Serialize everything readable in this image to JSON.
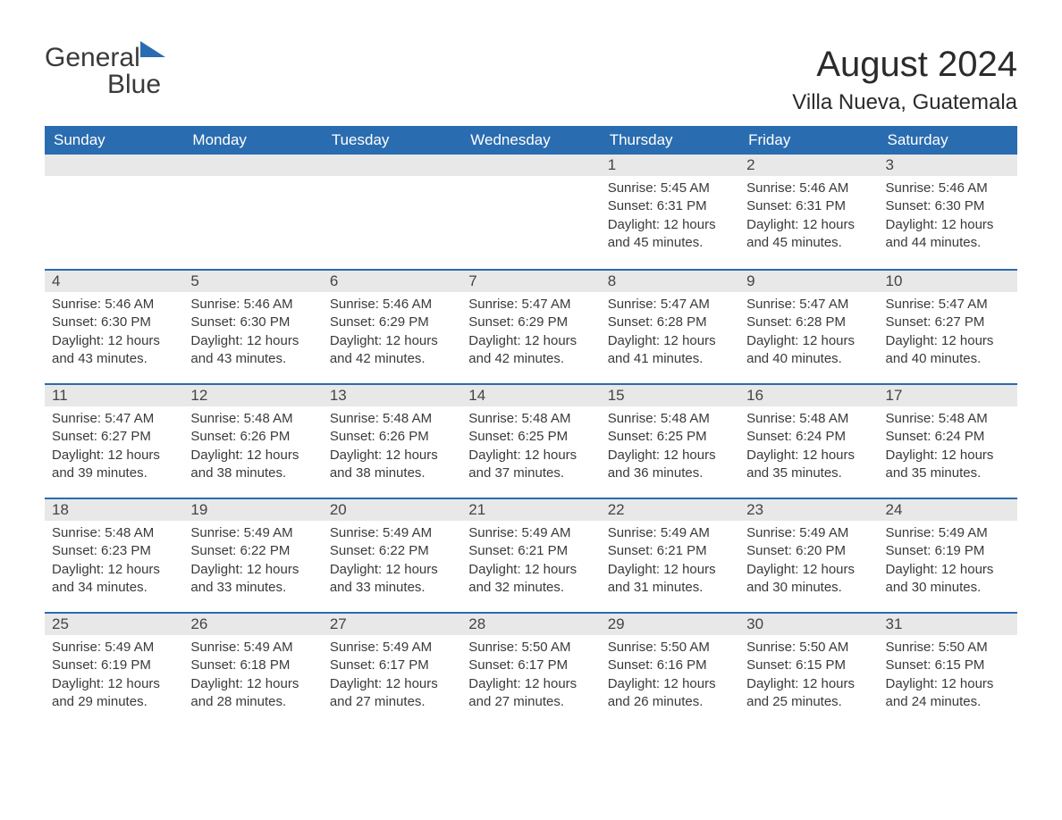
{
  "logo": {
    "part1": "General",
    "part2": "Blue"
  },
  "title": "August 2024",
  "location": "Villa Nueva, Guatemala",
  "colors": {
    "header_bg": "#2a6cb0",
    "header_text": "#ffffff",
    "daynum_bg": "#e8e8e8",
    "daynum_border": "#2a6cb0",
    "body_text": "#3a3a3a",
    "page_bg": "#ffffff"
  },
  "typography": {
    "month_title_size": 40,
    "location_size": 24,
    "header_cell_size": 17,
    "daynum_size": 17,
    "body_size": 15,
    "logo_size": 30
  },
  "weekdays": [
    "Sunday",
    "Monday",
    "Tuesday",
    "Wednesday",
    "Thursday",
    "Friday",
    "Saturday"
  ],
  "first_weekday_index": 4,
  "days": [
    {
      "n": 1,
      "sunrise": "5:45 AM",
      "sunset": "6:31 PM",
      "daylight": "12 hours and 45 minutes."
    },
    {
      "n": 2,
      "sunrise": "5:46 AM",
      "sunset": "6:31 PM",
      "daylight": "12 hours and 45 minutes."
    },
    {
      "n": 3,
      "sunrise": "5:46 AM",
      "sunset": "6:30 PM",
      "daylight": "12 hours and 44 minutes."
    },
    {
      "n": 4,
      "sunrise": "5:46 AM",
      "sunset": "6:30 PM",
      "daylight": "12 hours and 43 minutes."
    },
    {
      "n": 5,
      "sunrise": "5:46 AM",
      "sunset": "6:30 PM",
      "daylight": "12 hours and 43 minutes."
    },
    {
      "n": 6,
      "sunrise": "5:46 AM",
      "sunset": "6:29 PM",
      "daylight": "12 hours and 42 minutes."
    },
    {
      "n": 7,
      "sunrise": "5:47 AM",
      "sunset": "6:29 PM",
      "daylight": "12 hours and 42 minutes."
    },
    {
      "n": 8,
      "sunrise": "5:47 AM",
      "sunset": "6:28 PM",
      "daylight": "12 hours and 41 minutes."
    },
    {
      "n": 9,
      "sunrise": "5:47 AM",
      "sunset": "6:28 PM",
      "daylight": "12 hours and 40 minutes."
    },
    {
      "n": 10,
      "sunrise": "5:47 AM",
      "sunset": "6:27 PM",
      "daylight": "12 hours and 40 minutes."
    },
    {
      "n": 11,
      "sunrise": "5:47 AM",
      "sunset": "6:27 PM",
      "daylight": "12 hours and 39 minutes."
    },
    {
      "n": 12,
      "sunrise": "5:48 AM",
      "sunset": "6:26 PM",
      "daylight": "12 hours and 38 minutes."
    },
    {
      "n": 13,
      "sunrise": "5:48 AM",
      "sunset": "6:26 PM",
      "daylight": "12 hours and 38 minutes."
    },
    {
      "n": 14,
      "sunrise": "5:48 AM",
      "sunset": "6:25 PM",
      "daylight": "12 hours and 37 minutes."
    },
    {
      "n": 15,
      "sunrise": "5:48 AM",
      "sunset": "6:25 PM",
      "daylight": "12 hours and 36 minutes."
    },
    {
      "n": 16,
      "sunrise": "5:48 AM",
      "sunset": "6:24 PM",
      "daylight": "12 hours and 35 minutes."
    },
    {
      "n": 17,
      "sunrise": "5:48 AM",
      "sunset": "6:24 PM",
      "daylight": "12 hours and 35 minutes."
    },
    {
      "n": 18,
      "sunrise": "5:48 AM",
      "sunset": "6:23 PM",
      "daylight": "12 hours and 34 minutes."
    },
    {
      "n": 19,
      "sunrise": "5:49 AM",
      "sunset": "6:22 PM",
      "daylight": "12 hours and 33 minutes."
    },
    {
      "n": 20,
      "sunrise": "5:49 AM",
      "sunset": "6:22 PM",
      "daylight": "12 hours and 33 minutes."
    },
    {
      "n": 21,
      "sunrise": "5:49 AM",
      "sunset": "6:21 PM",
      "daylight": "12 hours and 32 minutes."
    },
    {
      "n": 22,
      "sunrise": "5:49 AM",
      "sunset": "6:21 PM",
      "daylight": "12 hours and 31 minutes."
    },
    {
      "n": 23,
      "sunrise": "5:49 AM",
      "sunset": "6:20 PM",
      "daylight": "12 hours and 30 minutes."
    },
    {
      "n": 24,
      "sunrise": "5:49 AM",
      "sunset": "6:19 PM",
      "daylight": "12 hours and 30 minutes."
    },
    {
      "n": 25,
      "sunrise": "5:49 AM",
      "sunset": "6:19 PM",
      "daylight": "12 hours and 29 minutes."
    },
    {
      "n": 26,
      "sunrise": "5:49 AM",
      "sunset": "6:18 PM",
      "daylight": "12 hours and 28 minutes."
    },
    {
      "n": 27,
      "sunrise": "5:49 AM",
      "sunset": "6:17 PM",
      "daylight": "12 hours and 27 minutes."
    },
    {
      "n": 28,
      "sunrise": "5:50 AM",
      "sunset": "6:17 PM",
      "daylight": "12 hours and 27 minutes."
    },
    {
      "n": 29,
      "sunrise": "5:50 AM",
      "sunset": "6:16 PM",
      "daylight": "12 hours and 26 minutes."
    },
    {
      "n": 30,
      "sunrise": "5:50 AM",
      "sunset": "6:15 PM",
      "daylight": "12 hours and 25 minutes."
    },
    {
      "n": 31,
      "sunrise": "5:50 AM",
      "sunset": "6:15 PM",
      "daylight": "12 hours and 24 minutes."
    }
  ],
  "labels": {
    "sunrise": "Sunrise:",
    "sunset": "Sunset:",
    "daylight": "Daylight:"
  }
}
